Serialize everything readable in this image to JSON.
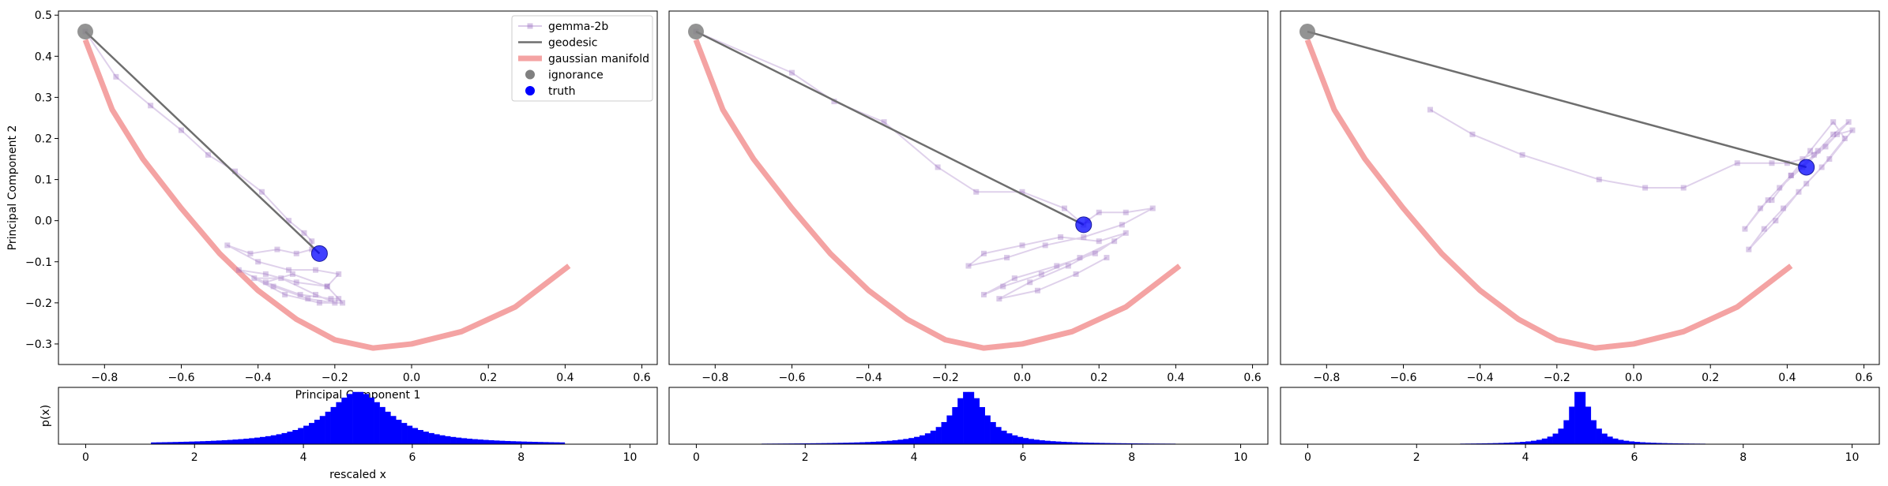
{
  "chart_data": [
    {
      "type": "line",
      "panel": 1,
      "xlabel": "Principal Component 1",
      "ylabel": "Principal Component 2",
      "xlim": [
        -0.92,
        0.64
      ],
      "ylim": [
        -0.35,
        0.51
      ],
      "xticks": [
        -0.8,
        -0.6,
        -0.4,
        -0.2,
        0.0,
        0.2,
        0.4,
        0.6
      ],
      "yticks": [
        -0.3,
        -0.2,
        -0.1,
        0.0,
        0.1,
        0.2,
        0.3,
        0.4,
        0.5
      ],
      "xtick_labels": [
        "−0.8",
        "−0.6",
        "−0.4",
        "−0.2",
        "0.0",
        "0.2",
        "0.4",
        "0.6"
      ],
      "ytick_labels": [
        "−0.3",
        "−0.2",
        "−0.1",
        "0.0",
        "0.1",
        "0.2",
        "0.3",
        "0.4",
        "0.5"
      ],
      "legend": {
        "placement": "upper right",
        "entries": [
          {
            "label": "gemma-2b",
            "color": "#9467bd",
            "marker": "square",
            "kind": "line"
          },
          {
            "label": "geodesic",
            "color": "#6e6e6e",
            "kind": "line"
          },
          {
            "label": "gaussian manifold",
            "color": "#f4a3a3",
            "kind": "thick-line"
          },
          {
            "label": "ignorance",
            "color": "#808080",
            "kind": "dot"
          },
          {
            "label": "truth",
            "color": "#0000ff",
            "kind": "dot"
          }
        ]
      },
      "series": [
        {
          "name": "gemma-2b",
          "color": "#9467bd",
          "x": [
            -0.85,
            -0.77,
            -0.68,
            -0.6,
            -0.53,
            -0.46,
            -0.39,
            -0.32,
            -0.28,
            -0.26,
            -0.26,
            -0.3,
            -0.35,
            -0.42,
            -0.48,
            -0.4,
            -0.32,
            -0.25,
            -0.19,
            -0.22,
            -0.3,
            -0.38,
            -0.45,
            -0.36,
            -0.27,
            -0.2,
            -0.25,
            -0.34,
            -0.41,
            -0.33,
            -0.24,
            -0.18,
            -0.22,
            -0.31,
            -0.38,
            -0.29,
            -0.21,
            -0.19
          ],
          "y": [
            0.46,
            0.35,
            0.28,
            0.22,
            0.16,
            0.12,
            0.07,
            0.0,
            -0.03,
            -0.05,
            -0.07,
            -0.08,
            -0.07,
            -0.08,
            -0.06,
            -0.1,
            -0.12,
            -0.12,
            -0.13,
            -0.16,
            -0.15,
            -0.13,
            -0.12,
            -0.16,
            -0.19,
            -0.2,
            -0.18,
            -0.14,
            -0.14,
            -0.18,
            -0.2,
            -0.2,
            -0.16,
            -0.13,
            -0.15,
            -0.18,
            -0.19,
            -0.19
          ]
        },
        {
          "name": "geodesic",
          "color": "#6e6e6e",
          "x": [
            -0.85,
            -0.24
          ],
          "y": [
            0.46,
            -0.08
          ]
        },
        {
          "name": "gaussian manifold",
          "color": "#f4a3a3",
          "x": [
            -0.85,
            -0.78,
            -0.7,
            -0.6,
            -0.5,
            -0.4,
            -0.3,
            -0.2,
            -0.1,
            0.0,
            0.13,
            0.27,
            0.41
          ],
          "y": [
            0.44,
            0.27,
            0.15,
            0.03,
            -0.08,
            -0.17,
            -0.24,
            -0.29,
            -0.31,
            -0.3,
            -0.27,
            -0.21,
            -0.11
          ]
        },
        {
          "name": "ignorance",
          "color": "#808080",
          "x": [
            -0.85
          ],
          "y": [
            0.46
          ]
        },
        {
          "name": "truth",
          "color": "#0000ff",
          "x": [
            -0.24
          ],
          "y": [
            -0.08
          ]
        }
      ]
    },
    {
      "type": "line",
      "panel": 2,
      "xlim": [
        -0.92,
        0.64
      ],
      "ylim": [
        -0.35,
        0.51
      ],
      "xticks": [
        -0.8,
        -0.6,
        -0.4,
        -0.2,
        0.0,
        0.2,
        0.4,
        0.6
      ],
      "xtick_labels": [
        "−0.8",
        "−0.6",
        "−0.4",
        "−0.2",
        "0.0",
        "0.2",
        "0.4",
        "0.6"
      ],
      "series": [
        {
          "name": "gemma-2b",
          "color": "#9467bd",
          "x": [
            -0.85,
            -0.6,
            -0.49,
            -0.36,
            -0.22,
            -0.12,
            0.0,
            0.11,
            0.16,
            0.17,
            0.2,
            0.27,
            0.34,
            0.26,
            0.16,
            0.06,
            -0.04,
            -0.14,
            -0.1,
            0.0,
            0.1,
            0.2,
            0.27,
            0.19,
            0.09,
            -0.02,
            -0.1,
            -0.05,
            0.05,
            0.15,
            0.24,
            0.12,
            0.02,
            -0.06,
            0.04,
            0.14,
            0.22
          ],
          "y": [
            0.46,
            0.36,
            0.29,
            0.24,
            0.13,
            0.07,
            0.07,
            0.03,
            -0.01,
            0.0,
            0.02,
            0.02,
            0.03,
            -0.01,
            -0.04,
            -0.06,
            -0.09,
            -0.11,
            -0.08,
            -0.06,
            -0.04,
            -0.05,
            -0.03,
            -0.08,
            -0.11,
            -0.14,
            -0.18,
            -0.16,
            -0.13,
            -0.09,
            -0.05,
            -0.11,
            -0.15,
            -0.19,
            -0.17,
            -0.13,
            -0.09
          ]
        },
        {
          "name": "geodesic",
          "color": "#6e6e6e",
          "x": [
            -0.85,
            0.16
          ],
          "y": [
            0.46,
            -0.01
          ]
        },
        {
          "name": "gaussian manifold",
          "color": "#f4a3a3",
          "x": [
            -0.85,
            -0.78,
            -0.7,
            -0.6,
            -0.5,
            -0.4,
            -0.3,
            -0.2,
            -0.1,
            0.0,
            0.13,
            0.27,
            0.41
          ],
          "y": [
            0.44,
            0.27,
            0.15,
            0.03,
            -0.08,
            -0.17,
            -0.24,
            -0.29,
            -0.31,
            -0.3,
            -0.27,
            -0.21,
            -0.11
          ]
        },
        {
          "name": "ignorance",
          "color": "#808080",
          "x": [
            -0.85
          ],
          "y": [
            0.46
          ]
        },
        {
          "name": "truth",
          "color": "#0000ff",
          "x": [
            0.16
          ],
          "y": [
            -0.01
          ]
        }
      ]
    },
    {
      "type": "line",
      "panel": 3,
      "xlim": [
        -0.92,
        0.64
      ],
      "ylim": [
        -0.35,
        0.51
      ],
      "xticks": [
        -0.8,
        -0.6,
        -0.4,
        -0.2,
        0.0,
        0.2,
        0.4,
        0.6
      ],
      "xtick_labels": [
        "−0.8",
        "−0.6",
        "−0.4",
        "−0.2",
        "0.0",
        "0.2",
        "0.4",
        "0.6"
      ],
      "series": [
        {
          "name": "gemma-2b",
          "color": "#9467bd",
          "x": [
            -0.53,
            -0.42,
            -0.29,
            -0.09,
            0.03,
            0.13,
            0.27,
            0.36,
            0.4,
            0.44,
            0.48,
            0.52,
            0.56,
            0.5,
            0.44,
            0.38,
            0.33,
            0.29,
            0.35,
            0.41,
            0.47,
            0.53,
            0.57,
            0.51,
            0.45,
            0.39,
            0.34,
            0.3,
            0.37,
            0.43,
            0.49,
            0.55,
            0.52,
            0.46,
            0.41,
            0.36
          ],
          "y": [
            0.27,
            0.21,
            0.16,
            0.1,
            0.08,
            0.08,
            0.14,
            0.14,
            0.14,
            0.15,
            0.17,
            0.21,
            0.24,
            0.18,
            0.13,
            0.08,
            0.03,
            -0.02,
            0.05,
            0.11,
            0.16,
            0.21,
            0.22,
            0.15,
            0.09,
            0.03,
            -0.02,
            -0.07,
            0.0,
            0.07,
            0.13,
            0.2,
            0.24,
            0.17,
            0.11,
            0.05
          ]
        },
        {
          "name": "geodesic",
          "color": "#6e6e6e",
          "x": [
            -0.85,
            0.45
          ],
          "y": [
            0.46,
            0.13
          ]
        },
        {
          "name": "gaussian manifold",
          "color": "#f4a3a3",
          "x": [
            -0.85,
            -0.78,
            -0.7,
            -0.6,
            -0.5,
            -0.4,
            -0.3,
            -0.2,
            -0.1,
            0.0,
            0.13,
            0.27,
            0.41
          ],
          "y": [
            0.44,
            0.27,
            0.15,
            0.03,
            -0.08,
            -0.17,
            -0.24,
            -0.29,
            -0.31,
            -0.3,
            -0.27,
            -0.21,
            -0.11
          ]
        },
        {
          "name": "ignorance",
          "color": "#808080",
          "x": [
            -0.85
          ],
          "y": [
            0.46
          ]
        },
        {
          "name": "truth",
          "color": "#0000ff",
          "x": [
            0.45
          ],
          "y": [
            0.13
          ]
        }
      ]
    },
    {
      "type": "bar",
      "panel": 4,
      "xlabel": "rescaled x",
      "ylabel": "p(x)",
      "xlim": [
        -0.5,
        10.5
      ],
      "xticks": [
        0,
        2,
        4,
        6,
        8,
        10
      ],
      "xtick_labels": [
        "0",
        "2",
        "4",
        "6",
        "8",
        "10"
      ],
      "color": "#0000ff",
      "distribution": {
        "center": 5.0,
        "scale": 0.7,
        "min": 1.2,
        "max": 8.8
      }
    },
    {
      "type": "bar",
      "panel": 5,
      "xlim": [
        -0.5,
        10.5
      ],
      "xticks": [
        0,
        2,
        4,
        6,
        8,
        10
      ],
      "xtick_labels": [
        "0",
        "2",
        "4",
        "6",
        "8",
        "10"
      ],
      "color": "#0000ff",
      "distribution": {
        "center": 5.0,
        "scale": 0.38,
        "min": 1.2,
        "max": 8.8
      }
    },
    {
      "type": "bar",
      "panel": 6,
      "xlim": [
        -0.5,
        10.5
      ],
      "xticks": [
        0,
        2,
        4,
        6,
        8,
        10
      ],
      "xtick_labels": [
        "0",
        "2",
        "4",
        "6",
        "8",
        "10"
      ],
      "color": "#0000ff",
      "distribution": {
        "center": 5.0,
        "scale": 0.22,
        "min": 2.8,
        "max": 7.3
      }
    }
  ]
}
